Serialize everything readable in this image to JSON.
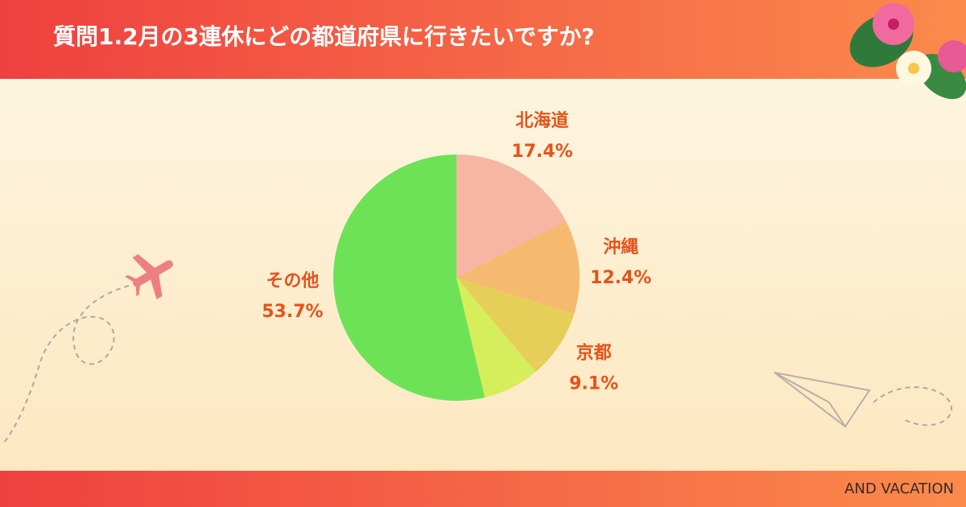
{
  "chart_data": {
    "type": "pie",
    "title": "質問1.2月の3連休にどの都道府県に行きたいですか?",
    "categories": [
      "北海道",
      "沖縄",
      "京都",
      null,
      "その他"
    ],
    "values": [
      17.4,
      12.4,
      9.1,
      7.4,
      53.7
    ],
    "value_labels": [
      "17.4%",
      "12.4%",
      "9.1%",
      null,
      "53.7%"
    ],
    "colors": [
      "#f7b5a4",
      "#f5ba70",
      "#e6cf58",
      "#d6ee5c",
      "#6de257"
    ],
    "brand": "AND VACATION"
  }
}
